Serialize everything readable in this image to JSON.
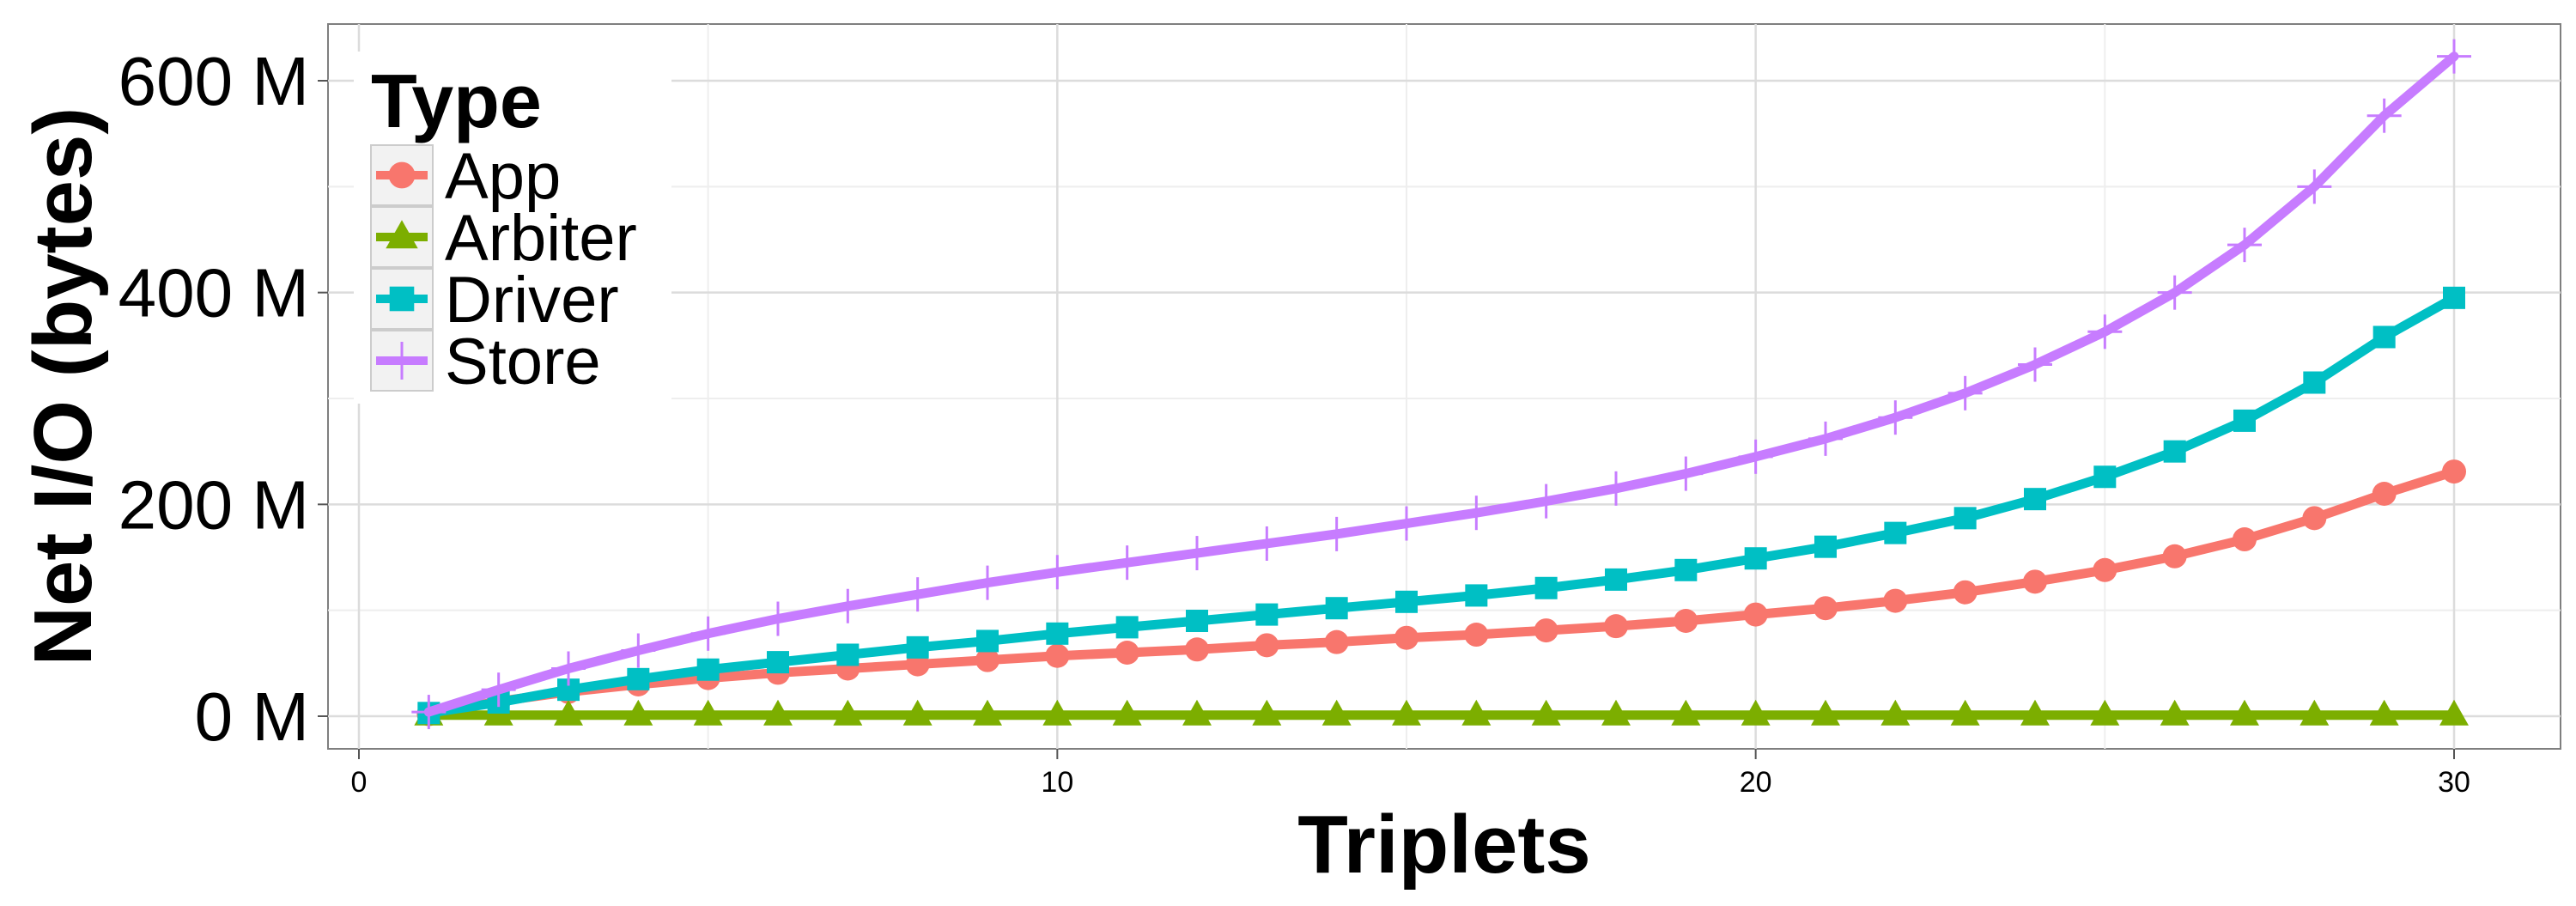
{
  "chart_data": {
    "type": "line",
    "xlabel": "Triplets",
    "ylabel": "Net I/O (bytes)",
    "xlim": [
      0,
      30
    ],
    "ylim": [
      0,
      600000000
    ],
    "x_ticks": [
      0,
      10,
      20,
      30
    ],
    "x_tick_labels": [
      "0",
      "10",
      "20",
      "30"
    ],
    "y_ticks": [
      0,
      200000000,
      400000000,
      600000000
    ],
    "y_tick_labels": [
      "0 M",
      "200 M",
      "400 M",
      "600 M"
    ],
    "grid": true,
    "legend": {
      "title": "Type",
      "placement": "top-left"
    },
    "x": [
      1,
      2,
      3,
      4,
      5,
      6,
      7,
      8,
      9,
      10,
      11,
      12,
      13,
      14,
      15,
      16,
      17,
      18,
      19,
      20,
      21,
      22,
      23,
      24,
      25,
      26,
      27,
      28,
      29,
      30
    ],
    "series": [
      {
        "name": "App",
        "color": "#F8766D",
        "marker": "circle",
        "values": [
          2000000,
          14000000,
          23000000,
          30000000,
          36000000,
          41000000,
          45000000,
          49000000,
          53000000,
          57000000,
          60000000,
          63000000,
          67000000,
          70000000,
          74000000,
          77000000,
          81000000,
          85000000,
          90000000,
          96000000,
          102000000,
          109000000,
          117000000,
          127000000,
          138000000,
          151000000,
          167000000,
          187000000,
          210000000,
          231000000
        ]
      },
      {
        "name": "Arbiter",
        "color": "#7CAE00",
        "marker": "triangle",
        "values": [
          1000000,
          1000000,
          1000000,
          1000000,
          1000000,
          1000000,
          1000000,
          1000000,
          1000000,
          1000000,
          1000000,
          1000000,
          1000000,
          1000000,
          1000000,
          1000000,
          1000000,
          1000000,
          1000000,
          1000000,
          1000000,
          1000000,
          1000000,
          1000000,
          1000000,
          1000000,
          1000000,
          1000000,
          1000000,
          1000000
        ]
      },
      {
        "name": "Driver",
        "color": "#00BFC4",
        "marker": "square",
        "values": [
          3000000,
          13000000,
          25000000,
          35000000,
          44000000,
          51000000,
          58000000,
          65000000,
          71000000,
          78000000,
          84000000,
          90000000,
          96000000,
          102000000,
          108000000,
          114000000,
          121000000,
          129000000,
          138000000,
          149000000,
          160000000,
          173000000,
          187000000,
          205000000,
          226000000,
          250000000,
          279000000,
          315000000,
          358000000,
          395000000
        ]
      },
      {
        "name": "Store",
        "color": "#C77CFF",
        "marker": "plus",
        "values": [
          4000000,
          25000000,
          45000000,
          62000000,
          78000000,
          92000000,
          104000000,
          115000000,
          126000000,
          136000000,
          145000000,
          154000000,
          163000000,
          172000000,
          182000000,
          192000000,
          203000000,
          215000000,
          229000000,
          245000000,
          262000000,
          282000000,
          305000000,
          332000000,
          363000000,
          400000000,
          445000000,
          500000000,
          567000000,
          623000000
        ]
      }
    ]
  }
}
